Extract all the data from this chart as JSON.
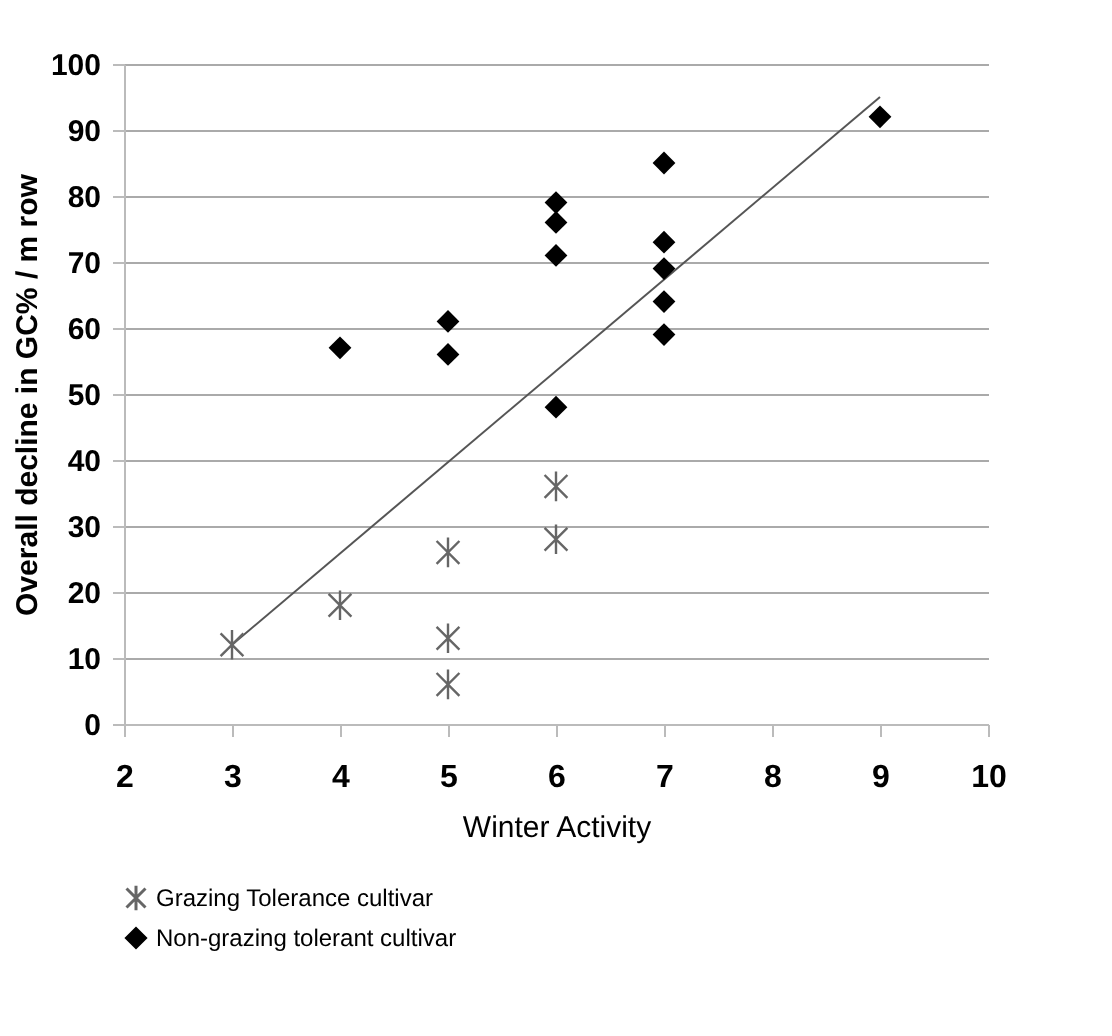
{
  "chart_data": {
    "type": "scatter",
    "xlabel": "Winter Activity",
    "ylabel": "Overall  decline in GC%  / m row",
    "xlim": [
      2,
      10
    ],
    "xticks": [
      2,
      3,
      4,
      5,
      6,
      7,
      8,
      9,
      10
    ],
    "ylim": [
      0,
      100
    ],
    "yticks": [
      0,
      10,
      20,
      30,
      40,
      50,
      60,
      70,
      80,
      90,
      100
    ],
    "grid": "y",
    "legend": "bottom",
    "series": [
      {
        "name": "Grazing Tolerance cultivar",
        "color": "#666666",
        "marker": "cross",
        "x": [
          3,
          4,
          5,
          5,
          5,
          6,
          6
        ],
        "values": [
          12,
          18,
          26,
          13,
          6,
          36,
          28
        ]
      },
      {
        "name": "Non-grazing tolerant cultivar",
        "color": "#000000",
        "marker": "diamond",
        "x": [
          4,
          5,
          5,
          6,
          6,
          6,
          6,
          7,
          7,
          7,
          7,
          7,
          9
        ],
        "values": [
          57,
          61,
          56,
          79,
          76,
          71,
          48,
          85,
          73,
          69,
          64,
          59,
          92
        ]
      },
      {
        "type": "line",
        "color": "#555555",
        "x": [
          3,
          9
        ],
        "values": [
          12,
          95
        ]
      }
    ]
  }
}
